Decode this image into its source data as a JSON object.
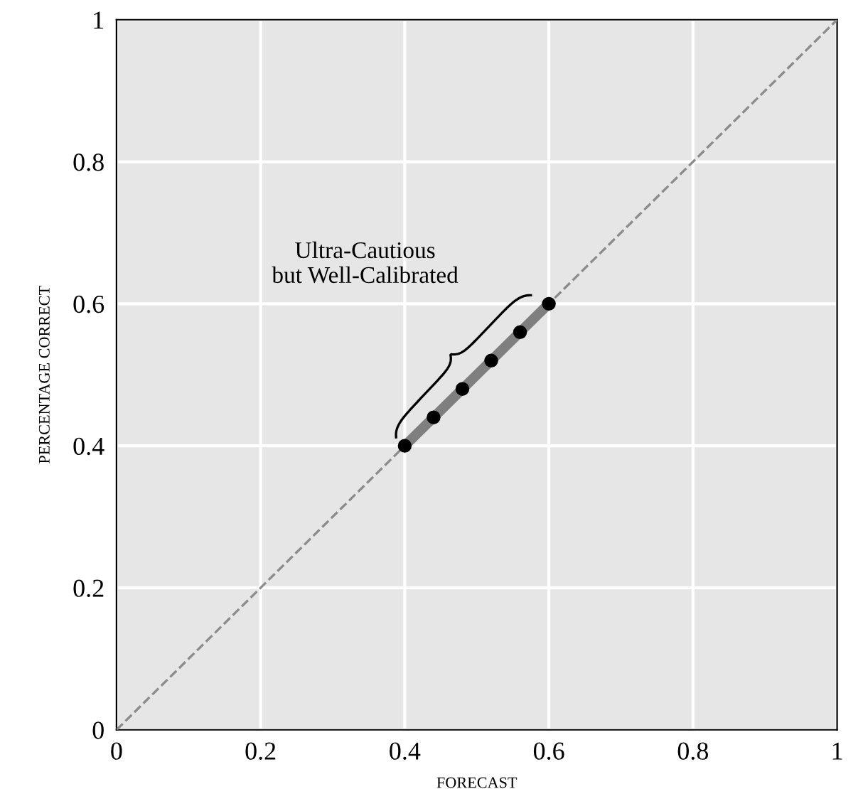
{
  "chart_data": {
    "type": "line",
    "xlabel": "FORECAST",
    "ylabel": "PERCENTAGE CORRECT",
    "series": [
      {
        "color": "#8c8c8c",
        "x": [
          0,
          1
        ],
        "values": [
          0,
          1
        ],
        "line_style": "dashed",
        "marker": "none"
      },
      {
        "color": "#7f7f7f",
        "x": [
          0.4,
          0.44,
          0.48,
          0.52,
          0.56,
          0.6
        ],
        "values": [
          0.4,
          0.44,
          0.48,
          0.52,
          0.56,
          0.6
        ],
        "line_style": "solid",
        "marker": "circle"
      }
    ],
    "annotations": [
      "Ultra-Cautious\nbut Well-Calibrated"
    ],
    "xlim": [
      0,
      1
    ],
    "ylim": [
      0,
      1
    ],
    "xticks": [
      0,
      0.2,
      0.4,
      0.6,
      0.8,
      1
    ],
    "yticks": [
      0,
      0.2,
      0.4,
      0.6,
      0.8,
      1
    ],
    "grid": true
  }
}
